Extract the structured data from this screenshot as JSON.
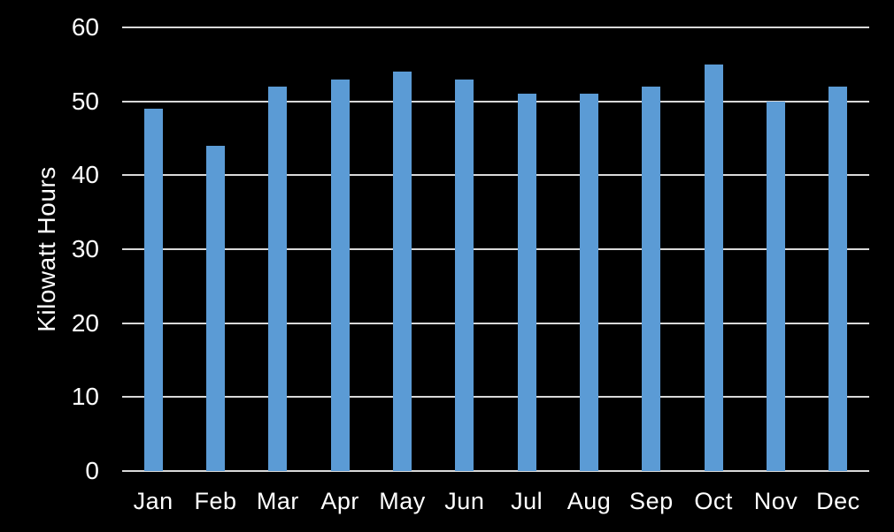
{
  "chart_data": {
    "type": "bar",
    "title": "",
    "xlabel": "",
    "ylabel": "Kilowatt Hours",
    "categories": [
      "Jan",
      "Feb",
      "Mar",
      "Apr",
      "May",
      "Jun",
      "Jul",
      "Aug",
      "Sep",
      "Oct",
      "Nov",
      "Dec"
    ],
    "values": [
      49,
      44,
      52,
      53,
      54,
      53,
      51,
      51,
      52,
      55,
      50,
      52
    ],
    "ylim": [
      0,
      60
    ],
    "yticks": [
      0,
      10,
      20,
      30,
      40,
      50,
      60
    ],
    "grid": "horizontal",
    "legend": "none",
    "colors": {
      "background": "#000000",
      "bar": "#5B9BD5",
      "gridline": "#D9D9D9",
      "text": "#FFFFFF"
    }
  }
}
